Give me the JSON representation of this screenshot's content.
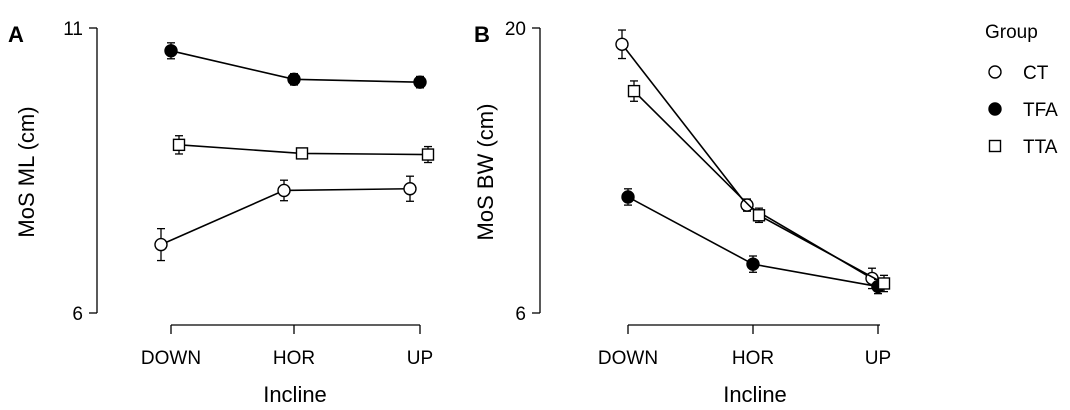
{
  "chart_data": [
    {
      "type": "line",
      "panel_label": "A",
      "categories": [
        "DOWN",
        "HOR",
        "UP"
      ],
      "xlabel": "Incline",
      "ylabel": "MoS ML (cm)",
      "ylim": [
        6,
        11
      ],
      "yticks": [
        6,
        11
      ],
      "series": [
        {
          "name": "CT",
          "values": [
            7.2,
            8.15,
            8.18
          ],
          "error": [
            0.28,
            0.18,
            0.22
          ]
        },
        {
          "name": "TFA",
          "values": [
            10.6,
            10.1,
            10.05
          ],
          "error": [
            0.14,
            0.1,
            0.1
          ]
        },
        {
          "name": "TTA",
          "values": [
            8.95,
            8.8,
            8.78
          ],
          "error": [
            0.16,
            0.07,
            0.14
          ]
        }
      ]
    },
    {
      "type": "line",
      "panel_label": "B",
      "categories": [
        "DOWN",
        "HOR",
        "UP"
      ],
      "xlabel": "Incline",
      "ylabel": "MoS BW (cm)",
      "ylim": [
        6,
        20
      ],
      "yticks": [
        6,
        20
      ],
      "series": [
        {
          "name": "CT",
          "values": [
            19.2,
            11.3,
            7.7
          ],
          "error": [
            0.7,
            0.3,
            0.5
          ]
        },
        {
          "name": "TFA",
          "values": [
            11.7,
            8.4,
            7.3
          ],
          "error": [
            0.4,
            0.4,
            0.35
          ]
        },
        {
          "name": "TTA",
          "values": [
            16.9,
            10.8,
            7.45
          ],
          "error": [
            0.5,
            0.35,
            0.4
          ]
        }
      ]
    }
  ],
  "legend": {
    "title": "Group",
    "position": "right",
    "items": [
      {
        "label": "CT",
        "marker": "circle-open"
      },
      {
        "label": "TFA",
        "marker": "circle-filled"
      },
      {
        "label": "TTA",
        "marker": "square-open"
      }
    ]
  }
}
